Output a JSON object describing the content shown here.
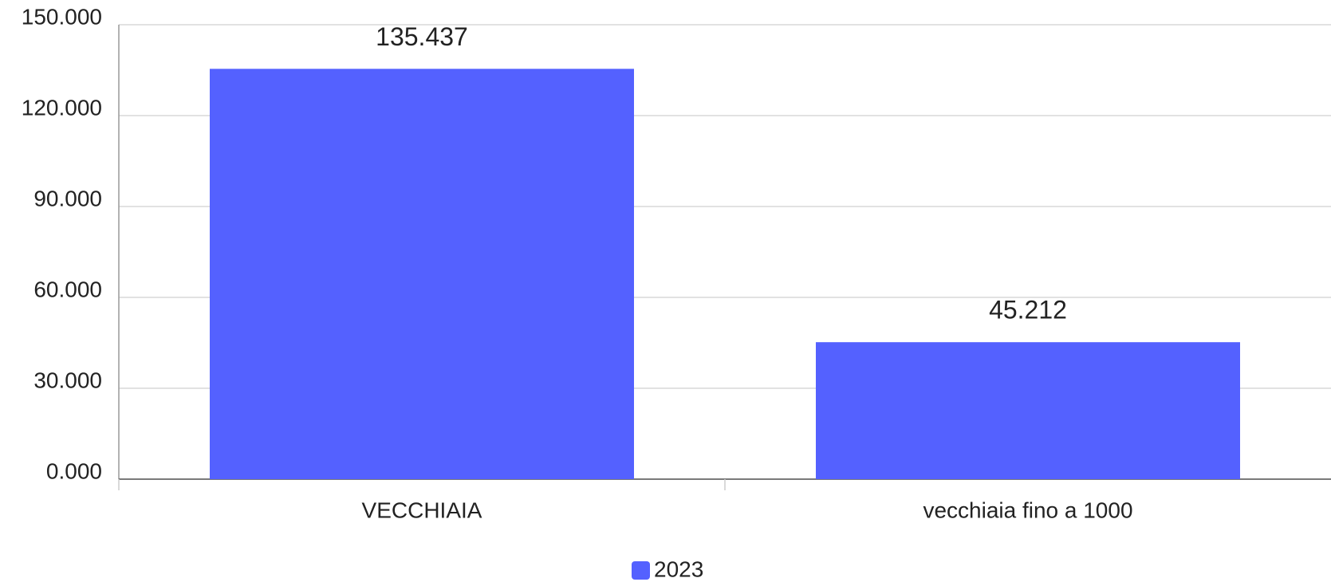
{
  "chart_data": {
    "type": "bar",
    "categories": [
      "VECCHIAIA",
      "vecchiaia fino a 1000"
    ],
    "series": [
      {
        "name": "2023",
        "color": "#5461ff",
        "values": [
          135437,
          45212
        ],
        "value_labels": [
          "135.437",
          "45.212"
        ]
      }
    ],
    "ylim": [
      0,
      150000
    ],
    "yticks": [
      {
        "value": 0,
        "label": "0.000"
      },
      {
        "value": 30000,
        "label": "30.000"
      },
      {
        "value": 60000,
        "label": "60.000"
      },
      {
        "value": 90000,
        "label": "90.000"
      },
      {
        "value": 120000,
        "label": "120.000"
      },
      {
        "value": 150000,
        "label": "150.000"
      }
    ],
    "grid": true,
    "legend": "bottom"
  }
}
